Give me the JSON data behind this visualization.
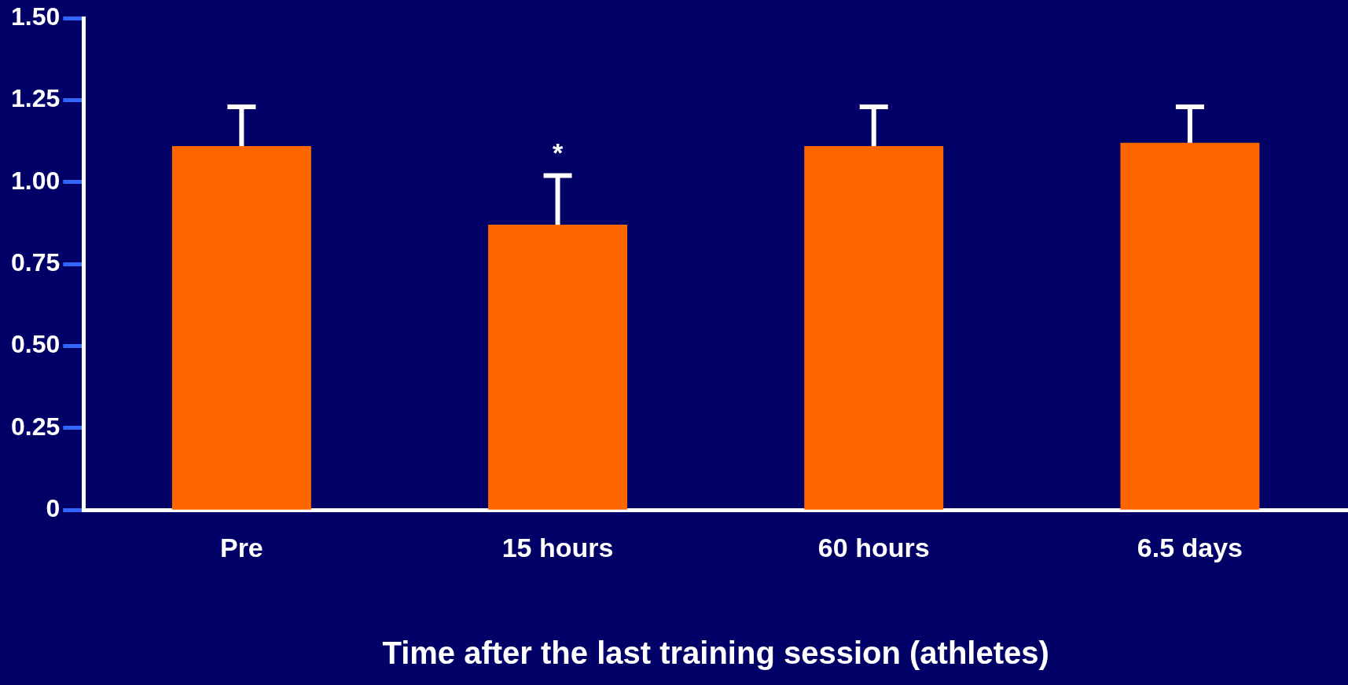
{
  "chart_data": {
    "type": "bar",
    "xlabel": "Time after the last training session (athletes)",
    "categories": [
      "Pre",
      "15 hours",
      "60 hours",
      "6.5 days"
    ],
    "series": [
      {
        "color": "#ff6600",
        "values": [
          1.11,
          0.87,
          1.11,
          1.12
        ],
        "errors": [
          [
            1.11,
            1.23
          ],
          [
            0.87,
            1.02
          ],
          [
            1.11,
            1.23
          ],
          [
            1.12,
            1.23
          ]
        ],
        "value_labels": [
          null,
          "*",
          null,
          null
        ]
      }
    ],
    "ylim": [
      0,
      1.5
    ],
    "yticks": [
      0,
      0.25,
      {
        "value": 0.5,
        "label": "0.50"
      },
      0.75,
      {
        "value": 1,
        "label": "1.00"
      },
      1.25,
      {
        "value": 1.5,
        "label": "1.50"
      }
    ],
    "grid": false,
    "legend": false
  }
}
